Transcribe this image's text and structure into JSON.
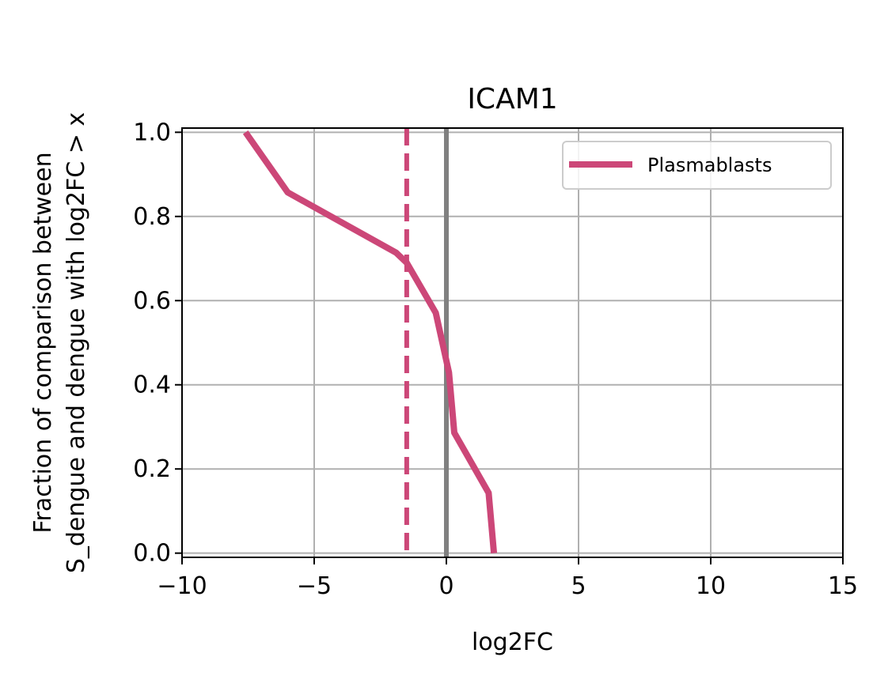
{
  "chart_data": {
    "type": "line",
    "title": "ICAM1",
    "xlabel": "log2FC",
    "ylabel_lines": [
      "Fraction of comparison between",
      "S_dengue and dengue with log2FC > x"
    ],
    "xlim": [
      -10,
      15
    ],
    "ylim": [
      -0.01,
      1.01
    ],
    "xticks": [
      -10,
      -5,
      0,
      5,
      10,
      15
    ],
    "xtick_labels": [
      "−10",
      "−5",
      "0",
      "5",
      "10",
      "15"
    ],
    "yticks": [
      0.0,
      0.2,
      0.4,
      0.6,
      0.8,
      1.0
    ],
    "ytick_labels": [
      "0.0",
      "0.2",
      "0.4",
      "0.6",
      "0.8",
      "1.0"
    ],
    "grid": true,
    "legend_position": "top-right",
    "series": [
      {
        "name": "Plasmablasts",
        "color": "#cc4778",
        "x": [
          -7.6,
          -6.0,
          -1.9,
          -1.5,
          -0.4,
          0.1,
          0.3,
          1.6,
          1.8
        ],
        "y": [
          1.0,
          0.857,
          0.714,
          0.69,
          0.571,
          0.429,
          0.286,
          0.143,
          0.0
        ]
      }
    ],
    "reference_lines": [
      {
        "x": -1.5,
        "color": "#cc4778",
        "style": "dashed"
      },
      {
        "x": 0,
        "color": "#808080",
        "style": "solid"
      }
    ]
  }
}
